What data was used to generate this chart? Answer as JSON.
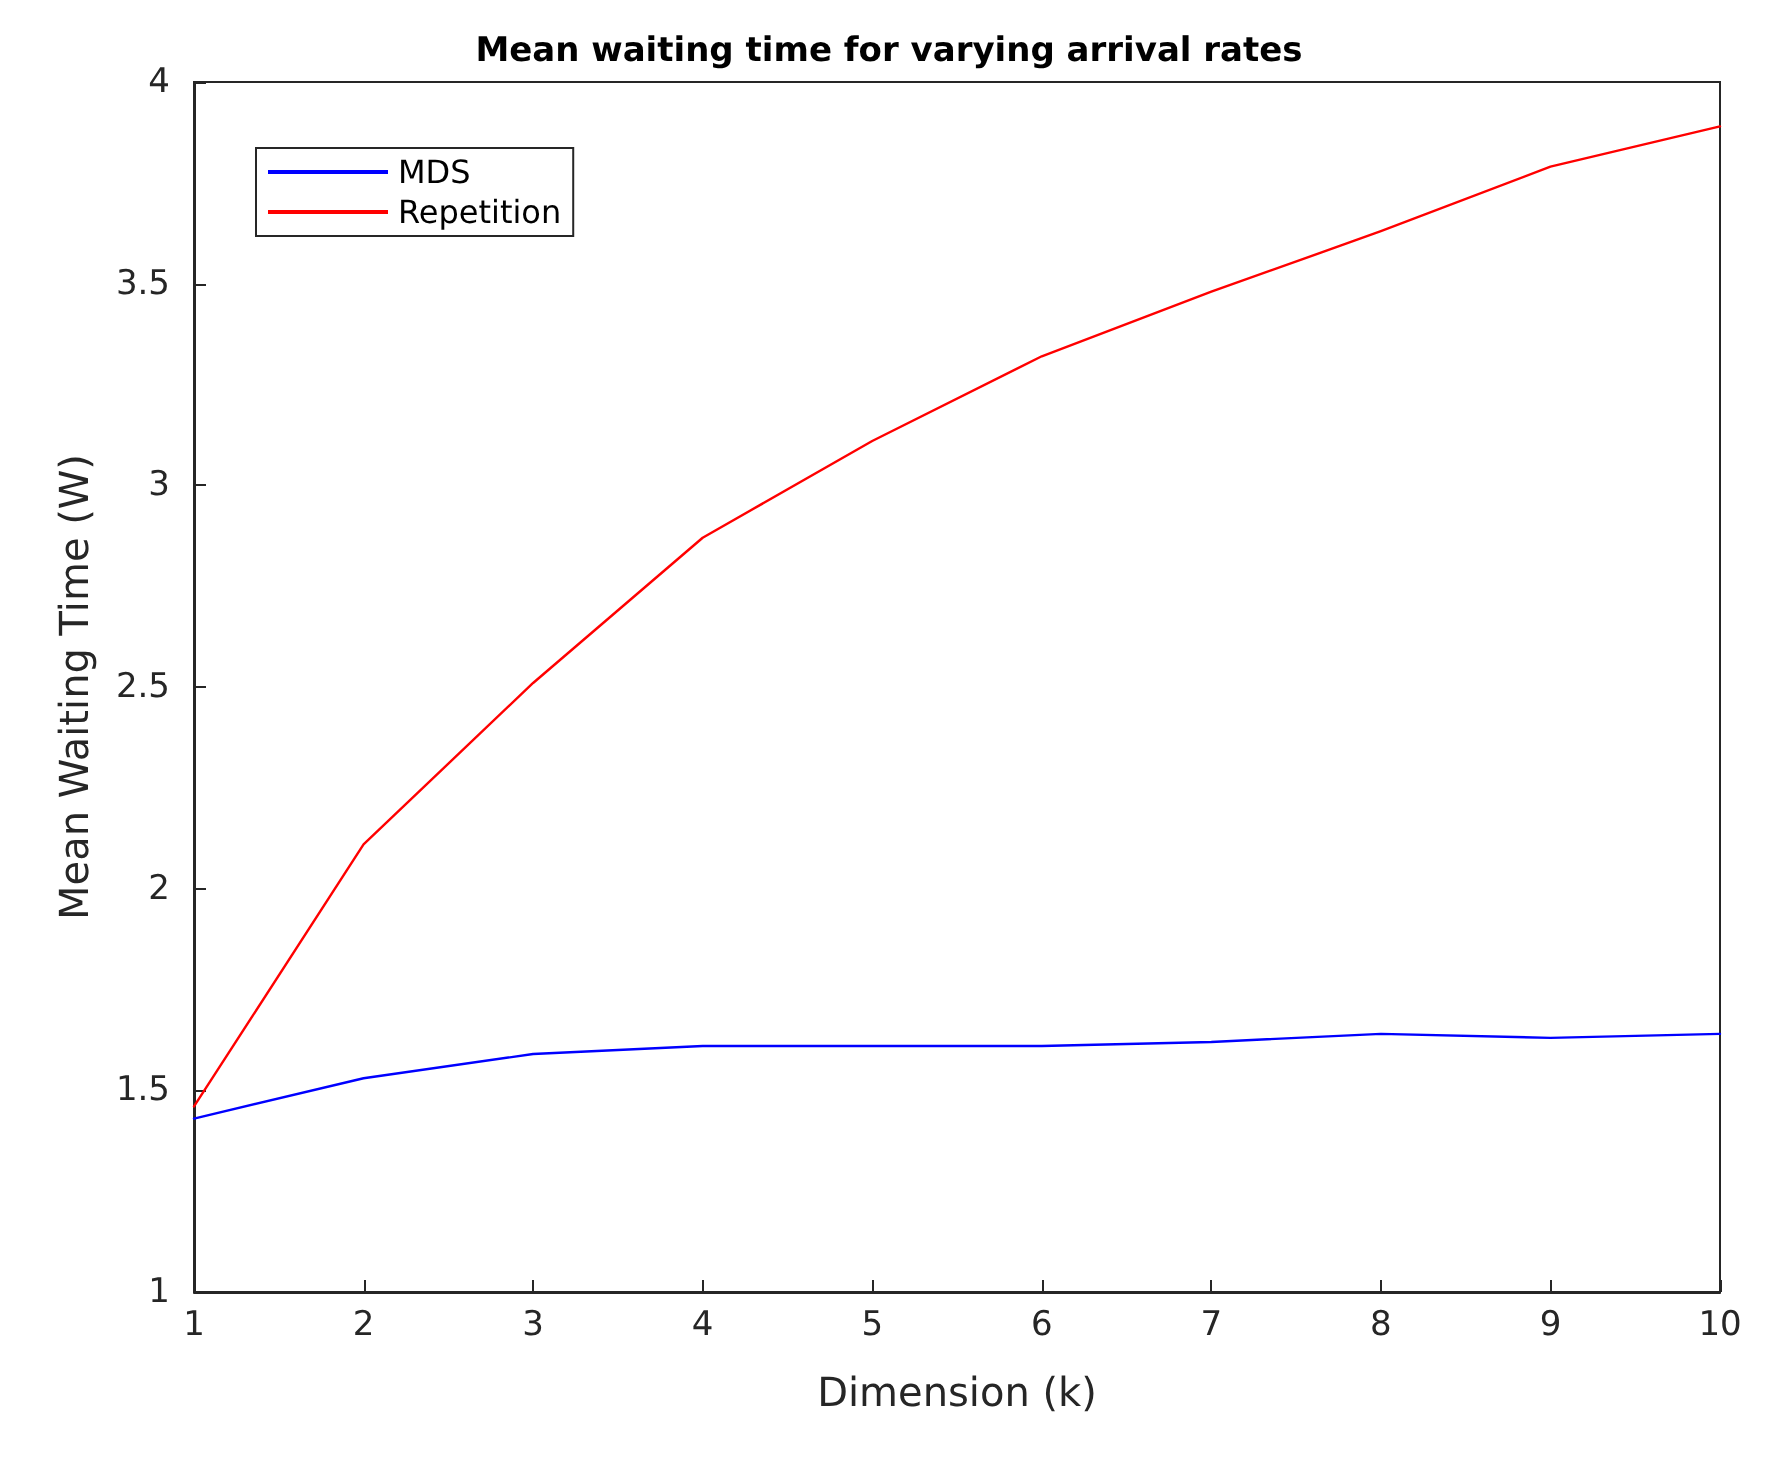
{
  "chart_data": {
    "type": "line",
    "title": "Mean waiting time for varying arrival rates",
    "xlabel": "Dimension (k)",
    "ylabel": "Mean Waiting Time (W)",
    "x": [
      1,
      2,
      3,
      4,
      5,
      6,
      7,
      8,
      9,
      10
    ],
    "series": [
      {
        "name": "MDS",
        "color": "#0000ff",
        "values": [
          1.43,
          1.53,
          1.59,
          1.61,
          1.61,
          1.61,
          1.62,
          1.64,
          1.63,
          1.64
        ]
      },
      {
        "name": "Repetition",
        "color": "#ff0000",
        "values": [
          1.46,
          2.11,
          2.51,
          2.87,
          3.11,
          3.32,
          3.48,
          3.63,
          3.79,
          3.89
        ]
      }
    ],
    "xlim": [
      1,
      10
    ],
    "xticks": [
      1,
      2,
      3,
      4,
      5,
      6,
      7,
      8,
      9,
      10
    ],
    "ylim": [
      1,
      4
    ],
    "yticks": [
      1,
      1.5,
      2,
      2.5,
      3,
      3.5,
      4
    ],
    "grid": false,
    "legend": "top left",
    "marker": "none",
    "line_style": "solid"
  }
}
